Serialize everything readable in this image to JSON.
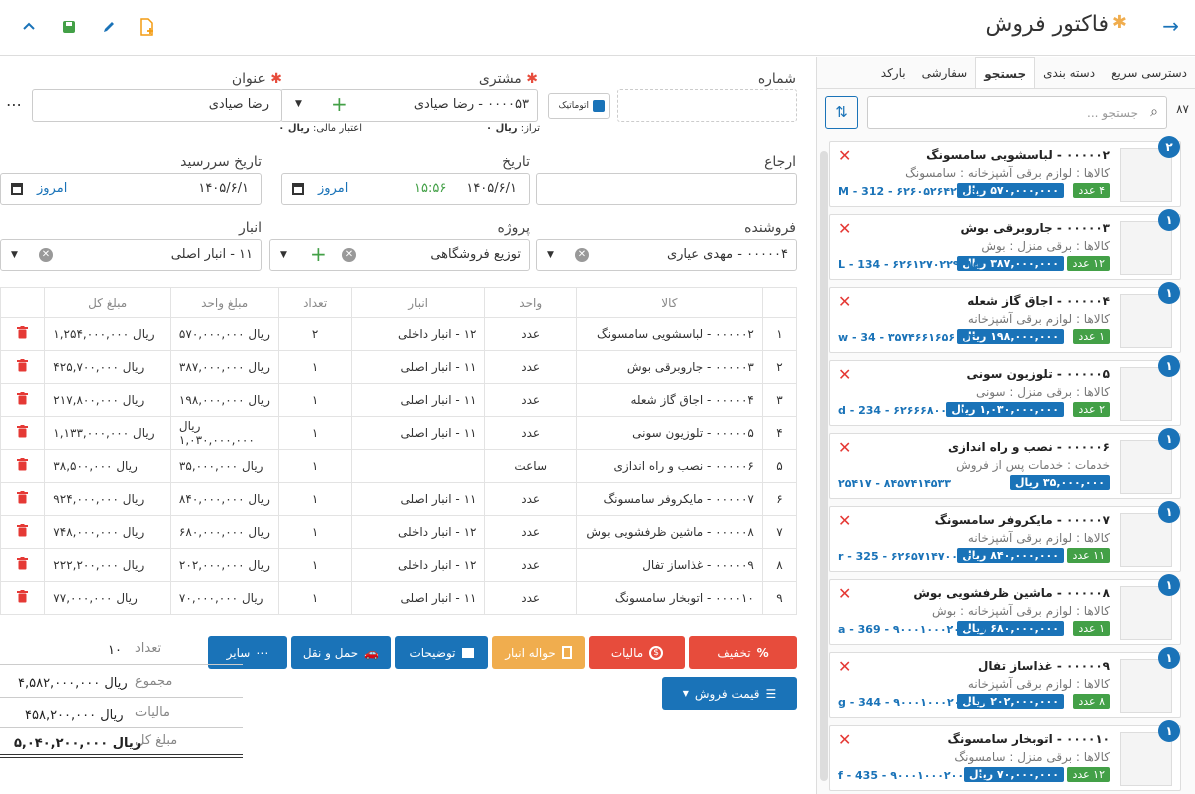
{
  "header": {
    "title": "فاکتور فروش"
  },
  "form": {
    "number_label": "شماره",
    "customer_label": "مشتری",
    "subject_label": "عنوان",
    "auto_label": "اتوماتیک",
    "customer_value": "۰۰۰۰۵۳ - رضا صیادی",
    "subject_value": "رضا صیادی",
    "balance_label": "تراز:",
    "balance_value": "ریال ۰",
    "credit_label": "اعتبار مالی:",
    "credit_value": "ریال ۰",
    "reference_label": "ارجاع",
    "date_label": "تاریخ",
    "date_value": "۱۴۰۵/۶/۱",
    "time_value": "۱۵:۵۶",
    "today_label": "امروز",
    "due_label": "تاریخ سررسید",
    "due_value": "۱۴۰۵/۶/۱",
    "seller_label": "فروشنده",
    "seller_value": "۰۰۰۰۰۴ - مهدی عیاری",
    "project_label": "پروژه",
    "project_value": "توزیع فروشگاهی",
    "warehouse_label": "انبار",
    "warehouse_value": "۱۱ - انبار اصلی"
  },
  "table": {
    "headers": [
      "",
      "کالا",
      "واحد",
      "انبار",
      "تعداد",
      "مبلغ واحد",
      "مبلغ کل",
      ""
    ],
    "rows": [
      [
        "۱",
        "۰۰۰۰۰۲ - لباسشویی سامسونگ",
        "عدد",
        "۱۲ - انبار داخلی",
        "۲",
        "ریال ۵۷۰,۰۰۰,۰۰۰",
        "ریال ۱,۲۵۴,۰۰۰,۰۰۰"
      ],
      [
        "۲",
        "۰۰۰۰۰۳ - جاروبرقی بوش",
        "عدد",
        "۱۱ - انبار اصلی",
        "۱",
        "ریال ۳۸۷,۰۰۰,۰۰۰",
        "ریال ۴۲۵,۷۰۰,۰۰۰"
      ],
      [
        "۳",
        "۰۰۰۰۰۴ - اجاق گاز شعله",
        "عدد",
        "۱۱ - انبار اصلی",
        "۱",
        "ریال ۱۹۸,۰۰۰,۰۰۰",
        "ریال ۲۱۷,۸۰۰,۰۰۰"
      ],
      [
        "۴",
        "۰۰۰۰۰۵ - تلوزیون سونی",
        "عدد",
        "۱۱ - انبار اصلی",
        "۱",
        "ریال ۱,۰۳۰,۰۰۰,۰۰۰",
        "ریال ۱,۱۳۳,۰۰۰,۰۰۰"
      ],
      [
        "۵",
        "۰۰۰۰۰۶ - نصب و راه اندازی",
        "ساعت",
        "",
        "۱",
        "ریال ۳۵,۰۰۰,۰۰۰",
        "ریال ۳۸,۵۰۰,۰۰۰"
      ],
      [
        "۶",
        "۰۰۰۰۰۷ - مایکروفر سامسونگ",
        "عدد",
        "۱۱ - انبار اصلی",
        "۱",
        "ریال ۸۴۰,۰۰۰,۰۰۰",
        "ریال ۹۲۴,۰۰۰,۰۰۰"
      ],
      [
        "۷",
        "۰۰۰۰۰۸ - ماشین ظرفشویی بوش",
        "عدد",
        "۱۲ - انبار داخلی",
        "۱",
        "ریال ۶۸۰,۰۰۰,۰۰۰",
        "ریال ۷۴۸,۰۰۰,۰۰۰"
      ],
      [
        "۸",
        "۰۰۰۰۰۹ - غذاساز تفال",
        "عدد",
        "۱۲ - انبار داخلی",
        "۱",
        "ریال ۲۰۲,۰۰۰,۰۰۰",
        "ریال ۲۲۲,۲۰۰,۰۰۰"
      ],
      [
        "۹",
        "۰۰۰۰۱۰ - اتوبخار سامسونگ",
        "عدد",
        "۱۱ - انبار اصلی",
        "۱",
        "ریال ۷۰,۰۰۰,۰۰۰",
        "ریال ۷۷,۰۰۰,۰۰۰"
      ]
    ]
  },
  "buttons": {
    "discount": "تخفیف",
    "tax": "مالیات",
    "warehouse_slip": "حواله انبار",
    "notes": "توضیحات",
    "shipping": "حمل و نقل",
    "other": "سایر",
    "price_list": "قیمت فروش"
  },
  "totals": {
    "count_label": "تعداد",
    "count_value": "۱۰",
    "sum_label": "مجموع",
    "sum_value": "ریال ۴,۵۸۲,۰۰۰,۰۰۰",
    "tax_label": "مالیات",
    "tax_value": "ریال ۴۵۸,۲۰۰,۰۰۰",
    "total_label": "مبلغ کل",
    "total_value": "ریال ۵,۰۴۰,۲۰۰,۰۰۰"
  },
  "sidebar": {
    "tabs": [
      "دسترسی سریع",
      "دسته بندی",
      "جستجو",
      "سفارشی",
      "بارکد"
    ],
    "active_tab": "جستجو",
    "search_placeholder": "جستجو ...",
    "result_count": "۸۷",
    "products": [
      {
        "badge": "۲",
        "name": "۰۰۰۰۰۲ - لباسشویی سامسونگ",
        "cat": "کالاها : لوازم برقی آشپزخانه : سامسونگ",
        "qty": "۴ عدد",
        "price": "۵۷۰,۰۰۰,۰۰۰ ریال",
        "code": "M - 312 - ۶۲۶۰۵۲۶۴۲۸۶۹۴"
      },
      {
        "badge": "۱",
        "name": "۰۰۰۰۰۳ - جاروبرقی بوش",
        "cat": "کالاها : برقی منزل : بوش",
        "qty": "۱۲ عدد",
        "price": "۳۸۷,۰۰۰,۰۰۰ ریال",
        "code": "L - 134 - ۶۲۶۱۲۷۰۲۲۹۳۱۵"
      },
      {
        "badge": "۱",
        "name": "۰۰۰۰۰۴ - اجاق گاز شعله",
        "cat": "کالاها : لوازم برقی آشپزخانه",
        "qty": "۱ عدد",
        "price": "۱۹۸,۰۰۰,۰۰۰ ریال",
        "code": "w - 34 - ۳۵۷۴۶۶۱۶۵۶۰۱۴"
      },
      {
        "badge": "۱",
        "name": "۰۰۰۰۰۵ - تلوزیون سونی",
        "cat": "کالاها : برقی منزل : سونی",
        "qty": "۲ عدد",
        "price": "۱,۰۳۰,۰۰۰,۰۰۰ ریال",
        "code": "d - 234 - ۶۲۶۶۶۸۰۰۰۰۱۲۷"
      },
      {
        "badge": "۱",
        "name": "۰۰۰۰۰۶ - نصب و راه اندازی",
        "cat": "خدمات : خدمات پس از فروش",
        "qty": "",
        "price": "۳۵,۰۰۰,۰۰۰ ریال",
        "code": "۲۵۴۱۷ - ۸۴۵۷۴۱۴۵۳۳"
      },
      {
        "badge": "۱",
        "name": "۰۰۰۰۰۷ - مایکروفر سامسونگ",
        "cat": "کالاها : لوازم برقی آشپزخانه",
        "qty": "۱۱ عدد",
        "price": "۸۴۰,۰۰۰,۰۰۰ ریال",
        "code": "r - 325 - ۶۲۶۵۷۱۴۷۰۰۰۴۰"
      },
      {
        "badge": "۱",
        "name": "۰۰۰۰۰۸ - ماشین ظرفشویی بوش",
        "cat": "کالاها : لوازم برقی آشپزخانه : بوش",
        "qty": "۱ عدد",
        "price": "۶۸۰,۰۰۰,۰۰۰ ریال",
        "code": "a - 369 - ۹۰۰۰۱۰۰۰۲۰۰۰۰۷"
      },
      {
        "badge": "۱",
        "name": "۰۰۰۰۰۹ - غذاساز تفال",
        "cat": "کالاها : لوازم برقی آشپزخانه",
        "qty": "۸ عدد",
        "price": "۲۰۲,۰۰۰,۰۰۰ ریال",
        "code": "g - 344 - ۹۰۰۰۱۰۰۰۲۰۰۰۰۸"
      },
      {
        "badge": "۱",
        "name": "۰۰۰۰۱۰ - اتوبخار سامسونگ",
        "cat": "کالاها : برقی منزل : سامسونگ",
        "qty": "۱۲ عدد",
        "price": "۷۰,۰۰۰,۰۰۰ ریال",
        "code": "f - 435 - ۹۰۰۰۱۰۰۰۲۰۰۰۰۹"
      }
    ]
  },
  "colors": {
    "accent": "#1a73b8",
    "danger": "#e53935",
    "success": "#43a047",
    "orange": "#f0ad4e"
  }
}
